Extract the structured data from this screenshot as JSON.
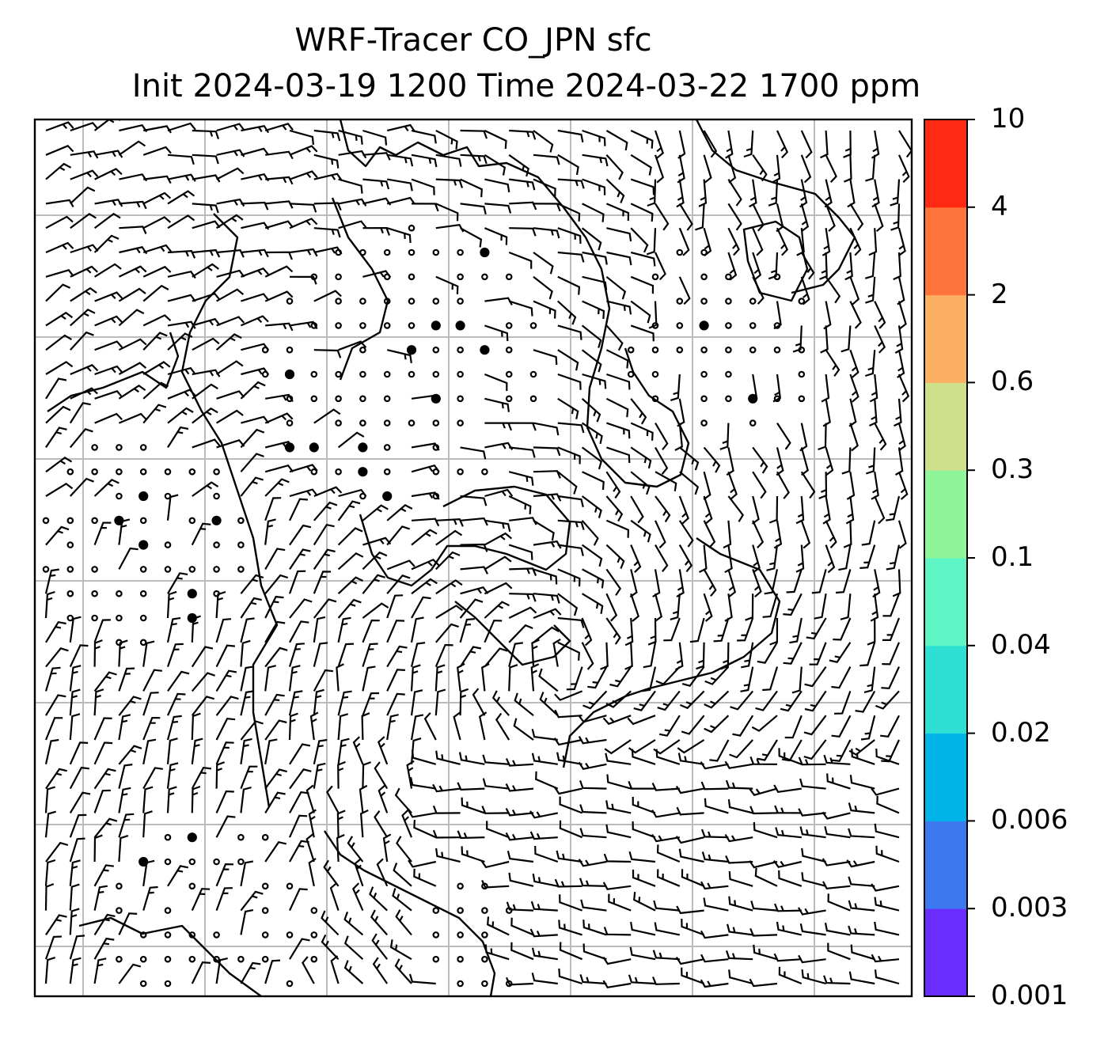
{
  "title": {
    "line1": "WRF-Tracer CO_JPN sfc",
    "line2": "Init 2024-03-19 1200 Time 2024-03-22 1700 ppm"
  },
  "colorbar": {
    "levels": [
      "0.001",
      "0.003",
      "0.006",
      "0.02",
      "0.04",
      "0.1",
      "0.3",
      "0.6",
      "2",
      "4",
      "10"
    ],
    "colors": [
      "#6a2cff",
      "#3c78f0",
      "#00b4ea",
      "#2ee0d4",
      "#5df5c4",
      "#8ef598",
      "#cfe08a",
      "#fdb064",
      "#ff733d",
      "#ff2a14"
    ]
  },
  "map": {
    "grid_color": "#bbbbbb",
    "coast_color": "#000000",
    "barb_color": "#000000"
  }
}
